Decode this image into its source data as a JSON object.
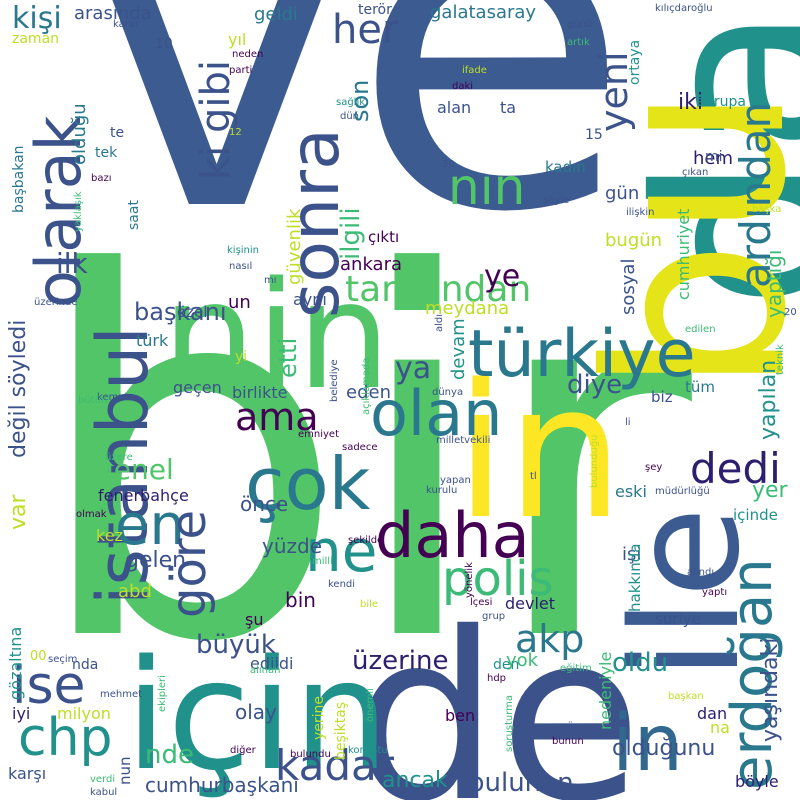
{
  "words": [
    {
      "text": "ve",
      "color": "#3b5b91"
    },
    {
      "text": "bir",
      "color": "#52c569"
    },
    {
      "text": "da",
      "color": "#21918c"
    },
    {
      "text": "bu",
      "color": "#e4e419"
    },
    {
      "text": "nin",
      "color": "#52c569"
    },
    {
      "text": "in",
      "color": "#fde725"
    },
    {
      "text": "de",
      "color": "#3b528b"
    },
    {
      "text": "için",
      "color": "#21918c"
    },
    {
      "text": "ile",
      "color": "#3b5b91"
    },
    {
      "text": "istanbul",
      "color": "#3b528b"
    },
    {
      "text": "olarak",
      "color": "#3b528b"
    },
    {
      "text": "sonra",
      "color": "#3b528b"
    },
    {
      "text": "türkiye",
      "color": "#2a788e"
    },
    {
      "text": "çok",
      "color": "#2a788e"
    },
    {
      "text": "olan",
      "color": "#2a788e"
    },
    {
      "text": "daha",
      "color": "#440154"
    },
    {
      "text": "erdoğan",
      "color": "#2a788e"
    },
    {
      "text": "in",
      "color": "#31688e"
    },
    {
      "text": "chp",
      "color": "#21918c"
    },
    {
      "text": "ise",
      "color": "#3b528b"
    },
    {
      "text": "en",
      "color": "#2a788e"
    },
    {
      "text": "ne",
      "color": "#21918c"
    },
    {
      "text": "polis",
      "color": "#3bbb75"
    },
    {
      "text": "göre",
      "color": "#3b528b"
    },
    {
      "text": "kadar",
      "color": "#3b528b"
    },
    {
      "text": "nın",
      "color": "#52c569"
    },
    {
      "text": "ki gibi",
      "color": "#3b528b"
    },
    {
      "text": "ardından",
      "color": "#2a788e"
    },
    {
      "text": "yeni",
      "color": "#3b528b"
    },
    {
      "text": "tarafından",
      "color": "#52c569"
    },
    {
      "text": "dedi",
      "color": "#2d1e6f"
    },
    {
      "text": "akp",
      "color": "#2a788e"
    },
    {
      "text": "ama",
      "color": "#440154"
    },
    {
      "text": "her",
      "color": "#3b528b"
    },
    {
      "text": "ilgili",
      "color": "#3bbb75"
    },
    {
      "text": "son",
      "color": "#2a788e"
    },
    {
      "text": "ye",
      "color": "#440154"
    },
    {
      "text": "ya",
      "color": "#3b528b"
    },
    {
      "text": "genel",
      "color": "#52c569"
    },
    {
      "text": "başkanı",
      "color": "#3b528b"
    },
    {
      "text": "ilk",
      "color": "#3b528b"
    },
    {
      "text": "etti",
      "color": "#3bbb75"
    },
    {
      "text": "diye",
      "color": "#3b528b"
    },
    {
      "text": "büyük",
      "color": "#3b528b"
    },
    {
      "text": "üzerine",
      "color": "#2d1e6f"
    },
    {
      "text": "oldu",
      "color": "#21918c"
    },
    {
      "text": "bulunan",
      "color": "#3b528b"
    },
    {
      "text": "olduğunu",
      "color": "#3b528b"
    },
    {
      "text": "yaşındaki",
      "color": "#3b528b"
    },
    {
      "text": "cumhurbaşkanı",
      "color": "#3b528b"
    },
    {
      "text": "ancak",
      "color": "#21918c"
    },
    {
      "text": "yer",
      "color": "#3bbb75"
    },
    {
      "text": "yapılan",
      "color": "#21918c"
    },
    {
      "text": "yaptığı",
      "color": "#3bbb75"
    },
    {
      "text": "değil söyledi",
      "color": "#3b528b"
    },
    {
      "text": "var",
      "color": "#bddf26"
    },
    {
      "text": "nde",
      "color": "#3bbb75"
    },
    {
      "text": "olay",
      "color": "#3b528b"
    },
    {
      "text": "yok",
      "color": "#3bbb75"
    },
    {
      "text": "gelen",
      "color": "#3b528b"
    },
    {
      "text": "önce",
      "color": "#3b528b"
    },
    {
      "text": "yüzde",
      "color": "#3b528b"
    },
    {
      "text": "eden",
      "color": "#3b528b"
    },
    {
      "text": "devam",
      "color": "#21918c"
    },
    {
      "text": "meydana",
      "color": "#bddf26"
    },
    {
      "text": "ankara",
      "color": "#440154"
    },
    {
      "text": "bugün",
      "color": "#bddf26"
    },
    {
      "text": "güvenlik",
      "color": "#bddf26"
    },
    {
      "text": "çıktı",
      "color": "#440154"
    },
    {
      "text": "gün",
      "color": "#3b528b"
    },
    {
      "text": "sosyal",
      "color": "#3b528b"
    },
    {
      "text": "cumhuriyet",
      "color": "#3bbb75"
    },
    {
      "text": "kişi",
      "color": "#2a788e"
    },
    {
      "text": "arasında",
      "color": "#3b528b"
    },
    {
      "text": "geldi",
      "color": "#2a788e"
    },
    {
      "text": "galatasaray",
      "color": "#2a788e"
    },
    {
      "text": "olduğu",
      "color": "#2a788e"
    },
    {
      "text": "iki",
      "color": "#2d1e6f"
    },
    {
      "text": "avrupa",
      "color": "#21918c"
    },
    {
      "text": "başbakan",
      "color": "#2a788e"
    },
    {
      "text": "tek",
      "color": "#2a788e"
    },
    {
      "text": "te",
      "color": "#3b528b"
    },
    {
      "text": "saat",
      "color": "#2a788e"
    },
    {
      "text": "hem",
      "color": "#2d1e6f"
    },
    {
      "text": "kadın",
      "color": "#2a788e"
    },
    {
      "text": "türk",
      "color": "#2a788e"
    },
    {
      "text": "un",
      "color": "#440154"
    },
    {
      "text": "aynı",
      "color": "#3b528b"
    },
    {
      "text": "özel",
      "color": "#3b528b"
    },
    {
      "text": "birlikte",
      "color": "#3b528b"
    },
    {
      "text": "geçen",
      "color": "#3b528b"
    },
    {
      "text": "fenerbahçe",
      "color": "#2d1e6f"
    },
    {
      "text": "eski",
      "color": "#2a788e"
    },
    {
      "text": "tüm",
      "color": "#2a788e"
    },
    {
      "text": "biz",
      "color": "#3b528b"
    },
    {
      "text": "bin",
      "color": "#440154"
    },
    {
      "text": "abd",
      "color": "#bddf26"
    },
    {
      "text": "kez",
      "color": "#bddf26"
    },
    {
      "text": "işi",
      "color": "#3b528b"
    },
    {
      "text": "hakkında",
      "color": "#21918c"
    },
    {
      "text": "suriye",
      "color": "#3b528b"
    },
    {
      "text": "devlet",
      "color": "#2d1e6f"
    },
    {
      "text": "edildi",
      "color": "#3b528b"
    },
    {
      "text": "nedeniyle",
      "color": "#3bbb75"
    },
    {
      "text": "milyon",
      "color": "#bddf26"
    },
    {
      "text": "iyi",
      "color": "#2d1e6f"
    },
    {
      "text": "ben",
      "color": "#440154"
    },
    {
      "text": "dan",
      "color": "#2d1e6f"
    },
    {
      "text": "na",
      "color": "#bddf26"
    },
    {
      "text": "karşı",
      "color": "#3b528b"
    },
    {
      "text": "böyle",
      "color": "#2d1e6f"
    },
    {
      "text": "nun",
      "color": "#3b528b"
    },
    {
      "text": "beşiktaş",
      "color": "#bddf26"
    },
    {
      "text": "yerine",
      "color": "#bddf26"
    },
    {
      "text": "gözaltına",
      "color": "#21918c"
    },
    {
      "text": "şu",
      "color": "#440154"
    },
    {
      "text": "nda",
      "color": "#3b528b"
    },
    {
      "text": "içinde",
      "color": "#21918c"
    },
    {
      "text": "den",
      "color": "#21918c"
    },
    {
      "text": "yıl",
      "color": "#bddf26"
    },
    {
      "text": "terör",
      "color": "#3b528b"
    },
    {
      "text": "ortaya",
      "color": "#21918c"
    },
    {
      "text": "alan",
      "color": "#3b528b"
    },
    {
      "text": "ta",
      "color": "#3b528b"
    },
    {
      "text": "mi",
      "color": "#3b528b"
    },
    {
      "text": "yi",
      "color": "#bddf26"
    },
    {
      "text": "15",
      "color": "#3b528b"
    },
    {
      "text": "10",
      "color": "#3b528b"
    },
    {
      "text": "00",
      "color": "#bddf26"
    },
    {
      "text": "zaman",
      "color": "#bddf26"
    },
    {
      "text": "karar",
      "color": "#3b528b"
    },
    {
      "text": "neden",
      "color": "#440154"
    },
    {
      "text": "parti",
      "color": "#440154"
    },
    {
      "text": "ifade",
      "color": "#bddf26"
    },
    {
      "text": "daki",
      "color": "#440154"
    },
    {
      "text": "sağlık",
      "color": "#21918c"
    },
    {
      "text": "dün",
      "color": "#3b528b"
    },
    {
      "text": "12",
      "color": "#bddf26"
    },
    {
      "text": "30",
      "color": "#3b528b"
    },
    {
      "text": "bazı",
      "color": "#440154"
    },
    {
      "text": "yaklaşık",
      "color": "#3bbb75"
    },
    {
      "text": "kişinin",
      "color": "#21918c"
    },
    {
      "text": "nasıl",
      "color": "#3b528b"
    },
    {
      "text": "üzerinde",
      "color": "#3b528b"
    },
    {
      "text": "mı",
      "color": "#3b528b"
    },
    {
      "text": "günü",
      "color": "#3b528b"
    },
    {
      "text": "artık",
      "color": "#3bbb75"
    },
    {
      "text": "kılıçdaroğlu",
      "color": "#3b528b"
    },
    {
      "text": "çıkan",
      "color": "#3b528b"
    },
    {
      "text": "şöyle",
      "color": "#3b528b"
    },
    {
      "text": "ilişkin",
      "color": "#3b528b"
    },
    {
      "text": "başka",
      "color": "#bddf26"
    },
    {
      "text": "aldı",
      "color": "#3b528b"
    },
    {
      "text": "edilen",
      "color": "#3bbb75"
    },
    {
      "text": "20",
      "color": "#3b528b"
    },
    {
      "text": "teknik",
      "color": "#3bbb75"
    },
    {
      "text": "açıklamada",
      "color": "#3bbb75"
    },
    {
      "text": "belediye",
      "color": "#3b528b"
    },
    {
      "text": "dünya",
      "color": "#3b528b"
    },
    {
      "text": "li",
      "color": "#3b528b"
    },
    {
      "text": "kemal",
      "color": "#3b528b"
    },
    {
      "text": "bütün",
      "color": "#3bbb75"
    },
    {
      "text": "emniyet",
      "color": "#440154"
    },
    {
      "text": "sadece",
      "color": "#440154"
    },
    {
      "text": "milletvekili",
      "color": "#3b528b"
    },
    {
      "text": "bulunduğu",
      "color": "#bddf26"
    },
    {
      "text": "üzere",
      "color": "#3bbb75"
    },
    {
      "text": "olmak",
      "color": "#440154"
    },
    {
      "text": "şekilde",
      "color": "#440154"
    },
    {
      "text": "yapan",
      "color": "#3b528b"
    },
    {
      "text": "kurulu",
      "color": "#3b528b"
    },
    {
      "text": "tl",
      "color": "#3b528b"
    },
    {
      "text": "şey",
      "color": "#440154"
    },
    {
      "text": "müdürlüğü",
      "color": "#3b528b"
    },
    {
      "text": "milli",
      "color": "#3bbb75"
    },
    {
      "text": "kendi",
      "color": "#3b528b"
    },
    {
      "text": "bile",
      "color": "#bddf26"
    },
    {
      "text": "lçesi",
      "color": "#440154"
    },
    {
      "text": "yönelik",
      "color": "#440154"
    },
    {
      "text": "grup",
      "color": "#3b528b"
    },
    {
      "text": "alındı",
      "color": "#3b528b"
    },
    {
      "text": "yaptı",
      "color": "#440154"
    },
    {
      "text": "seçim",
      "color": "#3b528b"
    },
    {
      "text": "alınan",
      "color": "#3bbb75"
    },
    {
      "text": "eğitim",
      "color": "#3bbb75"
    },
    {
      "text": "hdp",
      "color": "#440154"
    },
    {
      "text": "başkan",
      "color": "#bddf26"
    },
    {
      "text": "mehmet",
      "color": "#3b528b"
    },
    {
      "text": "ekipleri",
      "color": "#3bbb75"
    },
    {
      "text": "önemli",
      "color": "#3bbb75"
    },
    {
      "text": "soruşturma",
      "color": "#3bbb75"
    },
    {
      "text": "söz",
      "color": "#3b528b"
    },
    {
      "text": "bunun",
      "color": "#440154"
    },
    {
      "text": "diğer",
      "color": "#440154"
    },
    {
      "text": "bulundu",
      "color": "#440154"
    },
    {
      "text": "konuştu",
      "color": "#21918c"
    },
    {
      "text": "verdi",
      "color": "#3bbb75"
    },
    {
      "text": "kabul",
      "color": "#3b528b"
    }
  ]
}
